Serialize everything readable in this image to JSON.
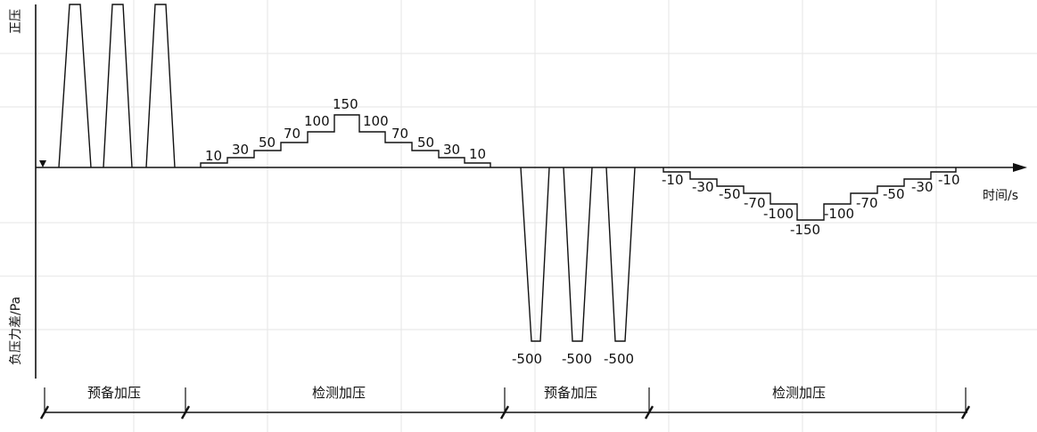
{
  "axes": {
    "y_positive_label": "正压",
    "y_negative_label": "负压力差/Pa",
    "x_label": "时间/s"
  },
  "phases": [
    {
      "name": "预备加压"
    },
    {
      "name": "检测加压"
    },
    {
      "name": "预备加压"
    },
    {
      "name": "检测加压"
    }
  ],
  "positive_steps": [
    "10",
    "30",
    "50",
    "70",
    "100",
    "150",
    "100",
    "70",
    "50",
    "30",
    "10"
  ],
  "negative_steps": [
    "-10",
    "-30",
    "-50",
    "-70",
    "-100",
    "-150",
    "-100",
    "-70",
    "-50",
    "-30",
    "-10"
  ],
  "negative_pulses": [
    "-500",
    "-500",
    "-500"
  ]
}
